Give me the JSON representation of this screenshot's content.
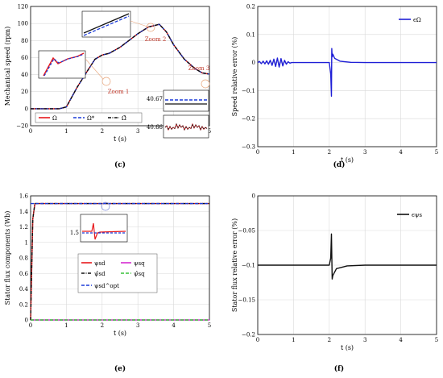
{
  "chart_data": [
    {
      "id": "c",
      "type": "line",
      "caption": "(c)",
      "xlabel": "t (s)",
      "ylabel": "Mechanical speed (rpm)",
      "xlim": [
        0,
        5
      ],
      "ylim": [
        -20,
        120
      ],
      "xticks": [
        "0",
        "1",
        "2",
        "3",
        "4",
        "5"
      ],
      "yticks": [
        "−20",
        "0",
        "20",
        "40",
        "60",
        "80",
        "100",
        "120"
      ],
      "grid": true,
      "legend_position": "bottom-left",
      "series": [
        {
          "name": "Ω",
          "color": "#e8171b",
          "dash": "solid",
          "x": [
            0,
            0.8,
            1.0,
            1.3,
            1.6,
            1.8,
            2.0,
            2.2,
            2.5,
            3.0,
            3.3,
            3.6,
            3.8,
            4.0,
            4.3,
            4.6,
            4.8,
            5.0
          ],
          "y": [
            0,
            0,
            2,
            25,
            45,
            58,
            63,
            65,
            72,
            88,
            96,
            99,
            90,
            75,
            58,
            47,
            42,
            40.67
          ]
        },
        {
          "name": "Ω*",
          "color": "#1a3ad8",
          "dash": "dash",
          "x": [
            0,
            0.8,
            1.0,
            1.3,
            1.6,
            1.8,
            2.0,
            2.2,
            2.5,
            3.0,
            3.3,
            3.6,
            3.8,
            4.0,
            4.3,
            4.6,
            4.8,
            5.0
          ],
          "y": [
            0,
            0,
            2,
            25,
            45,
            58,
            63,
            65,
            72,
            88,
            96,
            99,
            90,
            75,
            58,
            47,
            42,
            40.67
          ]
        },
        {
          "name": "Ω̂",
          "color": "#111111",
          "dash": "dashdot",
          "x": [
            0,
            0.8,
            1.0,
            1.3,
            1.6,
            1.8,
            2.0,
            2.2,
            2.5,
            3.0,
            3.3,
            3.6,
            3.8,
            4.0,
            4.3,
            4.6,
            4.8,
            5.0
          ],
          "y": [
            0,
            0,
            2,
            25,
            45,
            58,
            63,
            65,
            72,
            88,
            96,
            99,
            90,
            75,
            58,
            47,
            42,
            40.67
          ]
        }
      ],
      "annotations": [
        "Zoom 1",
        "Zoom 2",
        "Zoom 3"
      ],
      "inset_labels": [
        "40.67",
        "40.66"
      ]
    },
    {
      "id": "d",
      "type": "line",
      "caption": "(d)",
      "xlabel": "t (s)",
      "ylabel": "Speed  relative error (%)",
      "xlim": [
        0,
        5
      ],
      "ylim": [
        -0.3,
        0.2
      ],
      "xticks": [
        "0",
        "1",
        "2",
        "3",
        "4",
        "5"
      ],
      "yticks": [
        "−0.3",
        "−0.2",
        "−0.1",
        "0",
        "0.1",
        "0.2"
      ],
      "grid": true,
      "legend_position": "top-right",
      "series": [
        {
          "name": "ϵΩ",
          "color": "#1f1fd6",
          "dash": "solid",
          "x": [
            0,
            0.05,
            0.1,
            0.15,
            0.2,
            0.25,
            0.3,
            0.35,
            0.4,
            0.45,
            0.5,
            0.55,
            0.6,
            0.65,
            0.7,
            0.75,
            0.8,
            0.85,
            0.9,
            0.95,
            1.0,
            1.1,
            1.5,
            2.0,
            2.04,
            2.06,
            2.07,
            2.08,
            2.1,
            2.15,
            2.3,
            2.6,
            3.0,
            5.0
          ],
          "y": [
            0,
            0.004,
            -0.004,
            0.005,
            -0.005,
            0.006,
            -0.006,
            0.008,
            -0.01,
            0.012,
            -0.014,
            0.016,
            -0.016,
            0.014,
            -0.012,
            0.008,
            -0.006,
            0.003,
            -0.002,
            0,
            0,
            0,
            0,
            0,
            -0.04,
            -0.12,
            0.05,
            0.02,
            0.03,
            0.015,
            0.005,
            0.001,
            0,
            0
          ]
        }
      ]
    },
    {
      "id": "e",
      "type": "line",
      "caption": "(e)",
      "xlabel": "t (s)",
      "ylabel": "Stator flux components (Wb)",
      "xlim": [
        0,
        5
      ],
      "ylim": [
        0,
        1.6
      ],
      "xticks": [
        "0",
        "1",
        "2",
        "3",
        "4",
        "5"
      ],
      "yticks": [
        "0",
        "0.2",
        "0.4",
        "0.6",
        "0.8",
        "1",
        "1.2",
        "1.4",
        "1.6"
      ],
      "grid": true,
      "legend_position": "lower-center",
      "series": [
        {
          "name": "ψsd",
          "color": "#e8171b",
          "dash": "solid",
          "x": [
            0,
            0.06,
            0.12,
            5
          ],
          "y": [
            0,
            1.3,
            1.5,
            1.5
          ]
        },
        {
          "name": "ψsq",
          "color": "#d62ad0",
          "dash": "solid",
          "x": [
            0,
            5
          ],
          "y": [
            0,
            0
          ]
        },
        {
          "name": "ψ̂sd",
          "color": "#111111",
          "dash": "dashdot",
          "x": [
            0,
            0.06,
            0.12,
            5
          ],
          "y": [
            0,
            1.3,
            1.5,
            1.5
          ]
        },
        {
          "name": "ψ̂sq",
          "color": "#39c23a",
          "dash": "dash",
          "x": [
            0,
            5
          ],
          "y": [
            0,
            0
          ]
        },
        {
          "name": "ψsd^opt",
          "color": "#1a3ad8",
          "dash": "dash",
          "x": [
            0,
            5
          ],
          "y": [
            1.5,
            1.5
          ]
        }
      ],
      "inset_labels": [
        "1.5"
      ]
    },
    {
      "id": "f",
      "type": "line",
      "caption": "(f)",
      "xlabel": "t (s)",
      "ylabel": "Stator flux relative error (%)",
      "xlim": [
        0,
        5
      ],
      "ylim": [
        -0.2,
        0
      ],
      "xticks": [
        "0",
        "1",
        "2",
        "3",
        "4",
        "5"
      ],
      "yticks": [
        "−0.2",
        "−0.15",
        "−0.1",
        "−0.05",
        "0"
      ],
      "grid": true,
      "legend_position": "top-right",
      "series": [
        {
          "name": "ϵψs",
          "color": "#111111",
          "dash": "solid",
          "x": [
            0,
            1.0,
            2.0,
            2.04,
            2.06,
            2.08,
            2.1,
            2.2,
            2.5,
            3.0,
            5.0
          ],
          "y": [
            -0.1,
            -0.1,
            -0.1,
            -0.09,
            -0.055,
            -0.12,
            -0.115,
            -0.105,
            -0.101,
            -0.1,
            -0.1
          ]
        }
      ]
    }
  ]
}
